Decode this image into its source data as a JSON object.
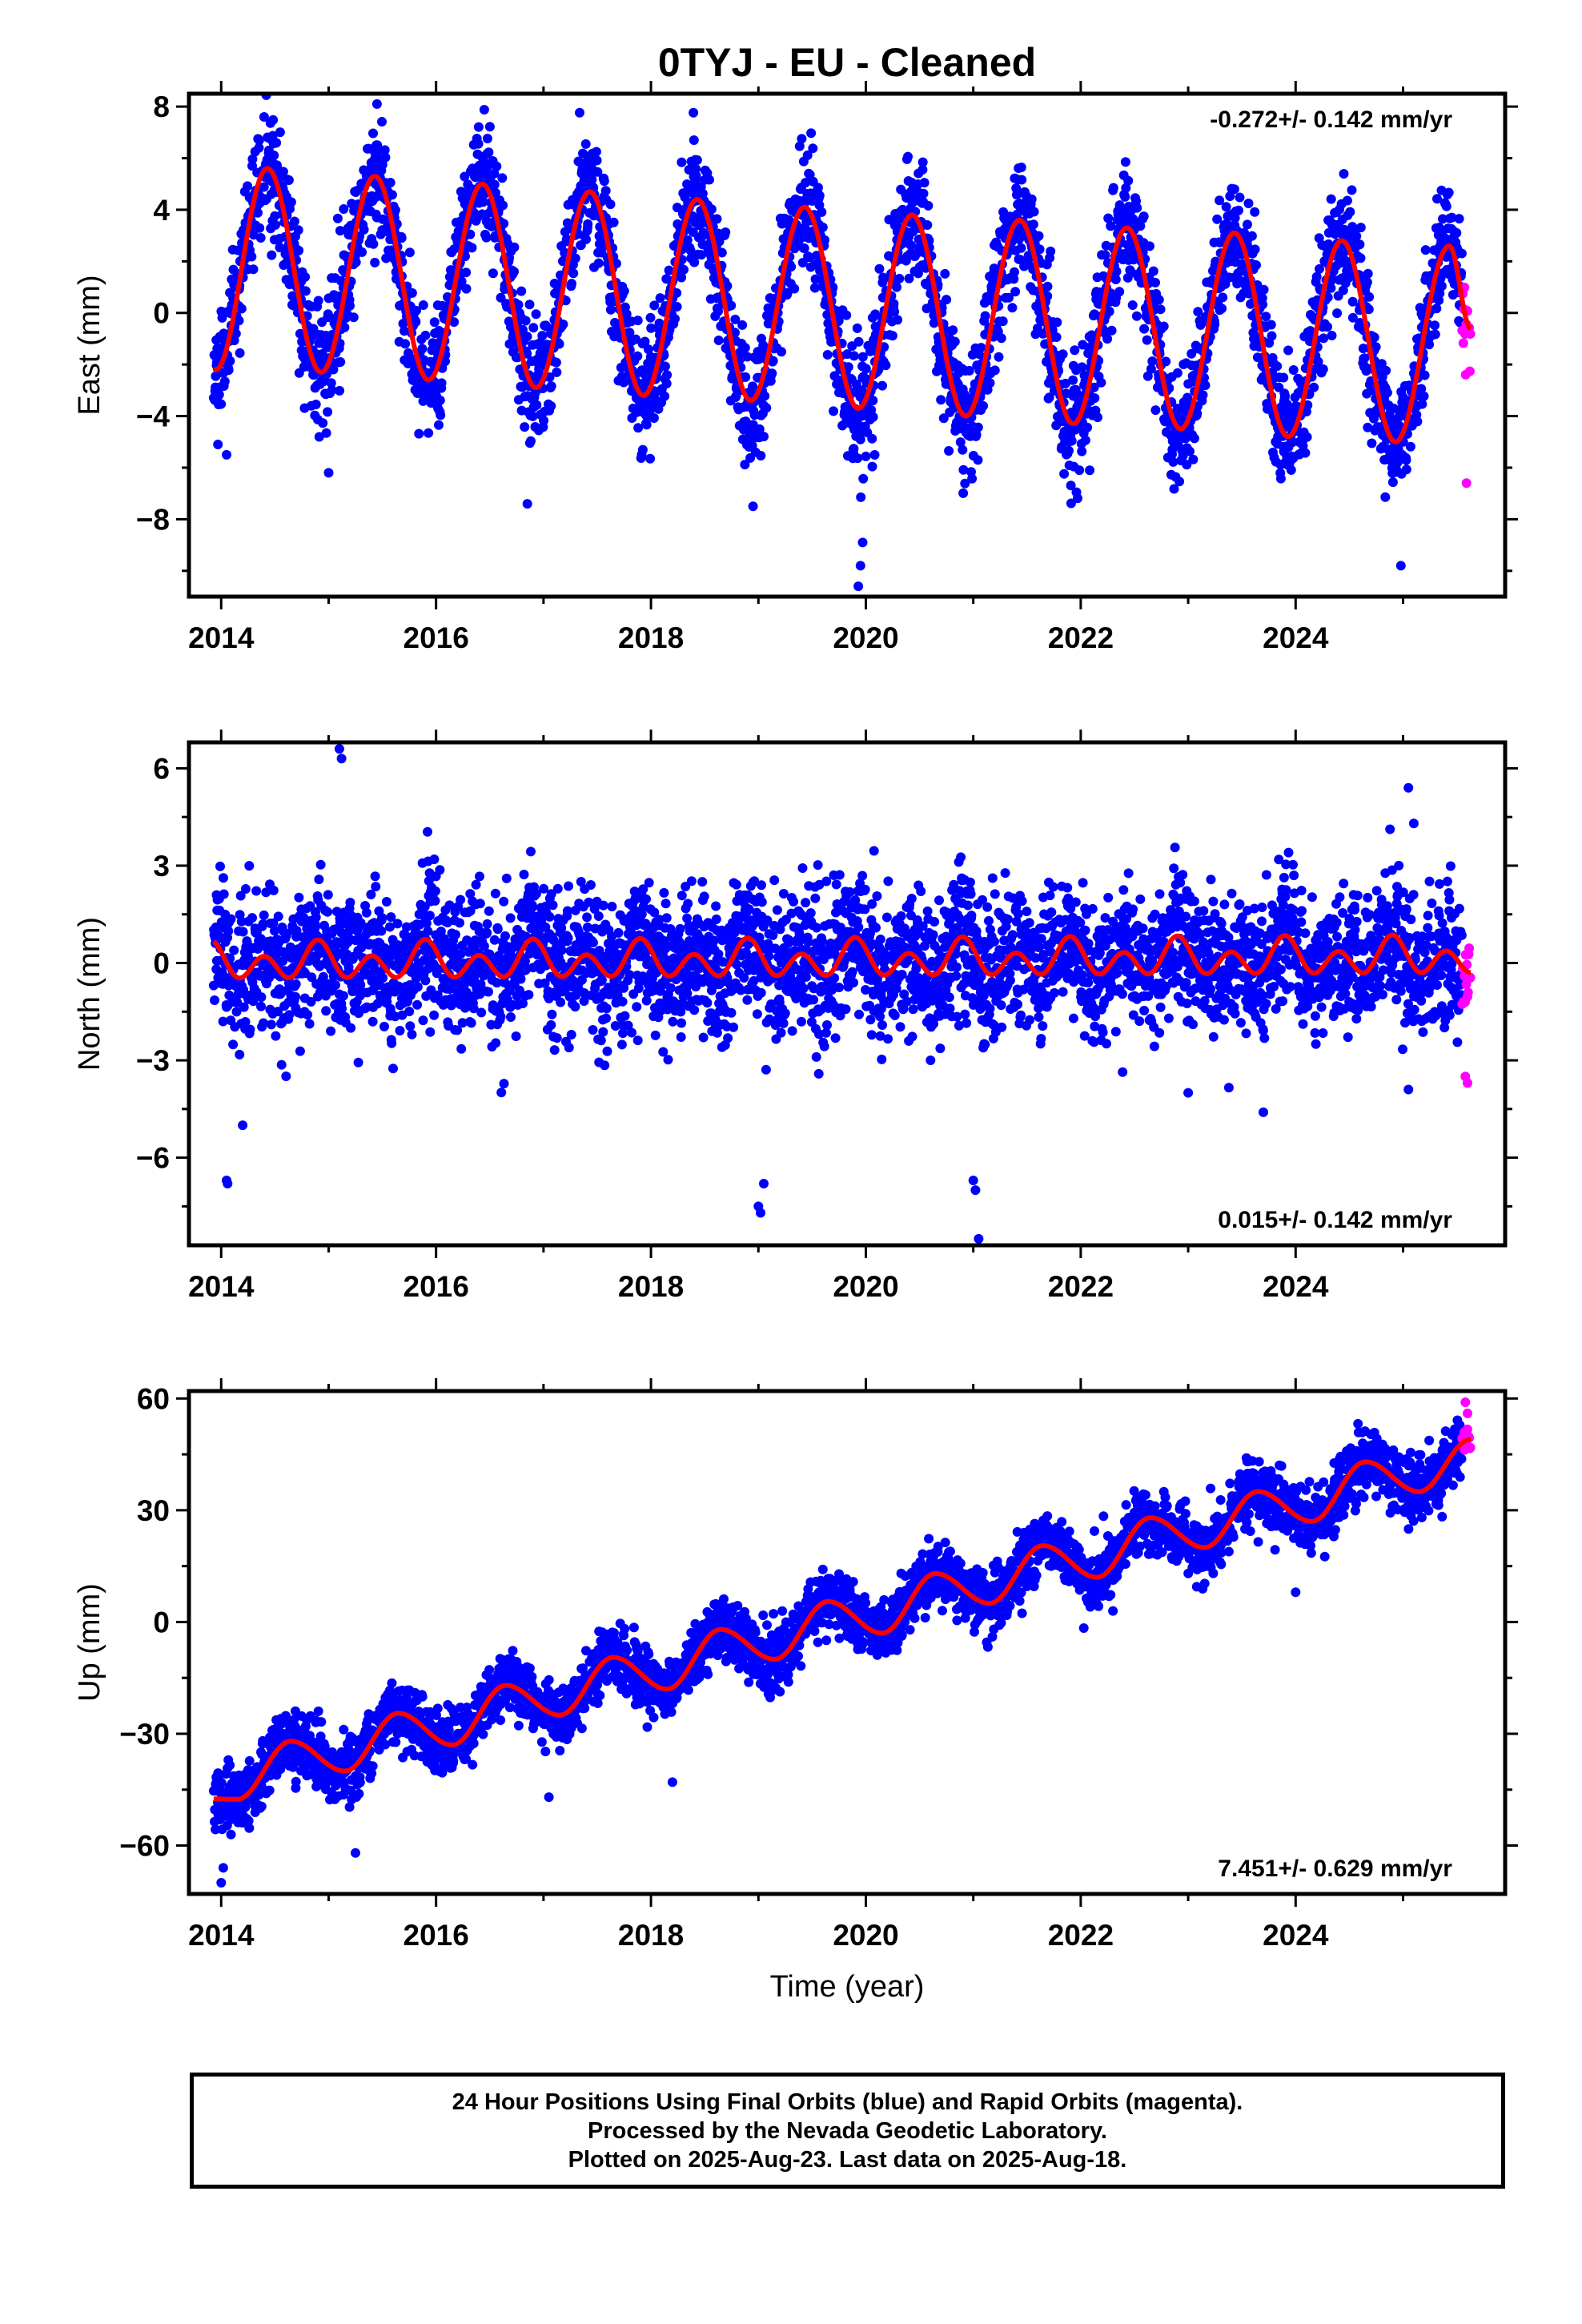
{
  "title": "0TYJ  - EU - Cleaned",
  "footer": {
    "line1": "24 Hour Positions Using Final Orbits (blue) and Rapid Orbits (magenta).",
    "line2": "Processed by the Nevada Geodetic Laboratory.",
    "line3": "Plotted on 2025-Aug-23. Last data on 2025-Aug-18."
  },
  "colors": {
    "final_orbits": "#0000ff",
    "rapid_orbits": "#ff00ff",
    "model": "#ff0000",
    "frame": "#000000"
  },
  "chart_data": [
    {
      "type": "scatter",
      "name": "east",
      "ylabel": "East (mm)",
      "xlabel": "",
      "xlim": [
        2013.7,
        2025.95
      ],
      "ylim": [
        -11,
        8.5
      ],
      "xticks": [
        2014,
        2016,
        2018,
        2020,
        2022,
        2024
      ],
      "yticks": [
        -8,
        -4,
        0,
        4,
        8
      ],
      "ytick_labels": [
        "−8",
        "−4",
        "0",
        "4",
        "8"
      ],
      "rate_label": "-0.272+/- 0.142 mm/yr",
      "rate_label_position": "top-right",
      "data_start": 2013.93,
      "data_end": 2025.55,
      "rapid_start": 2025.55,
      "rapid_end": 2025.63,
      "model": {
        "offset": 1.6,
        "rate": -0.272,
        "annual_amp_start": 3.9,
        "annual_amp_end": 3.9,
        "annual_phase": 2014.17,
        "semiannual_amp": 0.0,
        "amp_growth": 0.0
      },
      "model_points": [
        [
          2013.95,
          -2.2
        ],
        [
          2014.43,
          5.6
        ],
        [
          2014.93,
          -2.3
        ],
        [
          2015.43,
          5.3
        ],
        [
          2015.93,
          -2.6
        ],
        [
          2016.43,
          5.0
        ],
        [
          2016.93,
          -2.9
        ],
        [
          2017.43,
          4.7
        ],
        [
          2017.93,
          -3.2
        ],
        [
          2018.43,
          4.4
        ],
        [
          2018.93,
          -3.4
        ],
        [
          2019.43,
          4.1
        ],
        [
          2019.93,
          -3.7
        ],
        [
          2020.43,
          3.8
        ],
        [
          2020.93,
          -4.0
        ],
        [
          2021.43,
          3.6
        ],
        [
          2021.93,
          -4.3
        ],
        [
          2022.43,
          3.3
        ],
        [
          2022.93,
          -4.5
        ],
        [
          2023.43,
          3.1
        ],
        [
          2023.93,
          -4.8
        ],
        [
          2024.43,
          2.8
        ],
        [
          2024.93,
          -5.0
        ],
        [
          2025.43,
          2.6
        ],
        [
          2025.63,
          -0.6
        ]
      ],
      "noise": 1.15,
      "outliers": [
        [
          2019.93,
          -10.6
        ],
        [
          2019.95,
          -9.8
        ],
        [
          2019.97,
          -8.9
        ],
        [
          2013.97,
          -5.1
        ],
        [
          2014.05,
          -5.5
        ],
        [
          2015.0,
          -6.2
        ],
        [
          2016.85,
          -7.4
        ],
        [
          2018.95,
          -7.5
        ],
        [
          2024.98,
          -9.8
        ],
        [
          2015.45,
          8.1
        ],
        [
          2025.59,
          -6.6
        ],
        [
          2014.4,
          7.6
        ],
        [
          2018.4,
          6.7
        ]
      ],
      "seed": 11
    },
    {
      "type": "scatter",
      "name": "north",
      "ylabel": "North (mm)",
      "xlabel": "",
      "xlim": [
        2013.7,
        2025.95
      ],
      "ylim": [
        -8.7,
        6.8
      ],
      "xticks": [
        2014,
        2016,
        2018,
        2020,
        2022,
        2024
      ],
      "yticks": [
        -6,
        -3,
        0,
        3,
        6
      ],
      "ytick_labels": [
        "−6",
        "−3",
        "0",
        "3",
        "6"
      ],
      "rate_label": "0.015+/- 0.142 mm/yr",
      "rate_label_position": "bottom-right",
      "data_start": 2013.93,
      "data_end": 2025.55,
      "rapid_start": 2025.55,
      "rapid_end": 2025.63,
      "model": {
        "offset": 0.0,
        "rate": 0.015,
        "annual_amp_start": 0.25,
        "annual_amp_end": 0.25,
        "annual_phase": 2013.9,
        "semiannual_amp": 0.45,
        "amp_growth": 0.0
      },
      "noise": 1.05,
      "outliers": [
        [
          2015.1,
          6.6
        ],
        [
          2015.12,
          6.3
        ],
        [
          2025.05,
          5.4
        ],
        [
          2025.1,
          4.3
        ],
        [
          2014.05,
          -6.7
        ],
        [
          2014.06,
          -6.8
        ],
        [
          2019.0,
          -7.5
        ],
        [
          2019.02,
          -7.7
        ],
        [
          2019.05,
          -6.8
        ],
        [
          2021.0,
          -6.7
        ],
        [
          2021.02,
          -7.0
        ],
        [
          2021.05,
          -8.5
        ],
        [
          2014.2,
          -5.0
        ],
        [
          2025.6,
          -3.7
        ],
        [
          2025.58,
          -3.5
        ],
        [
          2025.05,
          -3.9
        ],
        [
          2023.7,
          -4.6
        ],
        [
          2023.0,
          -4.0
        ]
      ],
      "seed": 23
    },
    {
      "type": "scatter",
      "name": "up",
      "ylabel": "Up (mm)",
      "xlabel": "Time (year)",
      "xlim": [
        2013.7,
        2025.95
      ],
      "ylim": [
        -73,
        62
      ],
      "xticks": [
        2014,
        2016,
        2018,
        2020,
        2022,
        2024
      ],
      "yticks": [
        -60,
        -30,
        0,
        30,
        60
      ],
      "ytick_labels": [
        "−60",
        "−30",
        "0",
        "30",
        "60"
      ],
      "rate_label": "7.451+/- 0.629 mm/yr",
      "rate_label_position": "bottom-right",
      "data_start": 2013.93,
      "data_end": 2025.55,
      "rapid_start": 2025.55,
      "rapid_end": 2025.63,
      "model": {
        "offset": -44.0,
        "rate": 7.451,
        "annual_amp_start": 4.5,
        "annual_amp_end": 4.5,
        "annual_phase": 2014.4,
        "semiannual_amp": 0.6,
        "amp_growth": 0.0
      },
      "model_points": [
        [
          2013.95,
          -47.5
        ],
        [
          2014.15,
          -47.6
        ],
        [
          2014.65,
          -32
        ],
        [
          2015.15,
          -40
        ],
        [
          2015.65,
          -24.5
        ],
        [
          2016.15,
          -33
        ],
        [
          2016.65,
          -17
        ],
        [
          2017.15,
          -25
        ],
        [
          2017.65,
          -9.5
        ],
        [
          2018.15,
          -18
        ],
        [
          2018.65,
          -2
        ],
        [
          2019.15,
          -10
        ],
        [
          2019.65,
          5.5
        ],
        [
          2020.15,
          -3
        ],
        [
          2020.65,
          13
        ],
        [
          2021.15,
          5
        ],
        [
          2021.65,
          20.5
        ],
        [
          2022.15,
          12
        ],
        [
          2022.65,
          28
        ],
        [
          2023.15,
          20
        ],
        [
          2023.65,
          35
        ],
        [
          2024.15,
          27
        ],
        [
          2024.65,
          43
        ],
        [
          2025.15,
          35
        ],
        [
          2025.63,
          49
        ]
      ],
      "noise": 4.0,
      "outliers": [
        [
          2014.0,
          -70
        ],
        [
          2014.02,
          -66
        ],
        [
          2015.25,
          -62
        ],
        [
          2017.05,
          -47
        ],
        [
          2018.2,
          -43
        ],
        [
          2024.0,
          8
        ],
        [
          2023.6,
          40
        ],
        [
          2025.58,
          59
        ],
        [
          2025.6,
          56
        ],
        [
          2025.57,
          51
        ]
      ],
      "seed": 37
    }
  ]
}
